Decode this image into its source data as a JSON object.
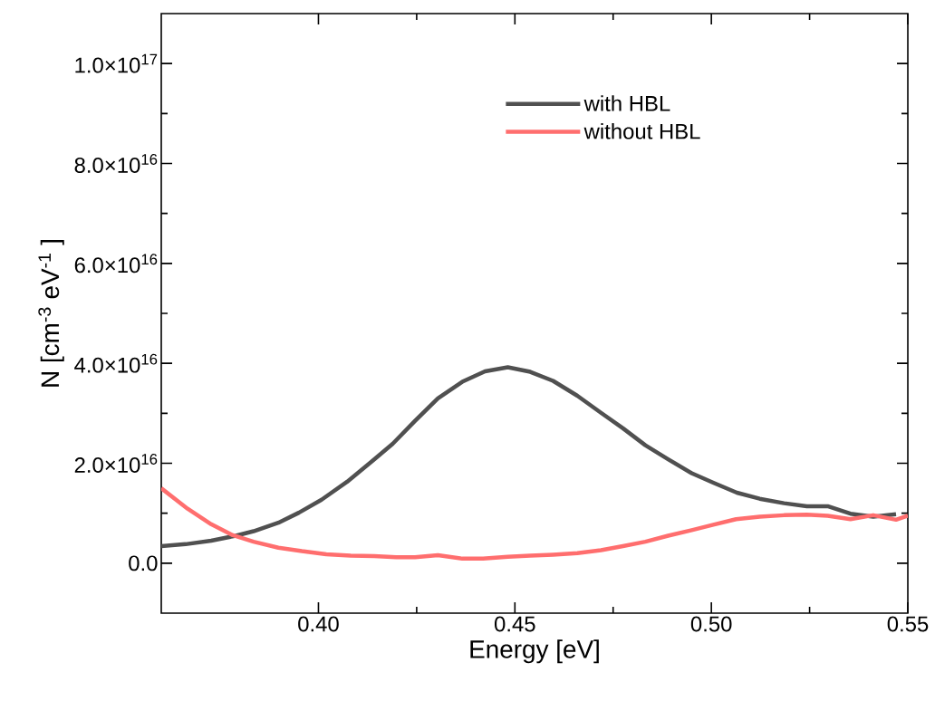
{
  "chart_data": {
    "type": "line",
    "xlabel": "Energy [eV]",
    "ylabel": "N [cm$^{-3}$ eV$^{-1}$ ]",
    "xlim": [
      0.36,
      0.55
    ],
    "ylim": [
      -1e+16,
      1.1e+17
    ],
    "xticks": [
      {
        "value": 0.4,
        "label": "0.40"
      },
      {
        "value": 0.45,
        "label": "0.45"
      },
      {
        "value": 0.5,
        "label": "0.50"
      },
      {
        "value": 0.55,
        "label": "0.55"
      }
    ],
    "yticks": [
      {
        "value": 0,
        "label": "0.0"
      },
      {
        "value": 2e+16,
        "label": "2.0×10$^{16}$"
      },
      {
        "value": 4e+16,
        "label": "4.0×10$^{16}$"
      },
      {
        "value": 6e+16,
        "label": "6.0×10$^{16}$"
      },
      {
        "value": 8e+16,
        "label": "8.0×10$^{16}$"
      },
      {
        "value": 1e+17,
        "label": "1.0×10$^{17}$"
      }
    ],
    "grid": false,
    "legend": "top right",
    "marker": "none",
    "line_style": "solid",
    "series": [
      {
        "name": "with HBL",
        "color": "#505050",
        "x": [
          0.36,
          0.3662,
          0.3727,
          0.379,
          0.3835,
          0.3898,
          0.395,
          0.4008,
          0.4073,
          0.4135,
          0.4189,
          0.4246,
          0.4304,
          0.4366,
          0.4424,
          0.4482,
          0.4539,
          0.4597,
          0.4659,
          0.4719,
          0.4775,
          0.4832,
          0.489,
          0.495,
          0.5005,
          0.5065,
          0.5123,
          0.5185,
          0.5243,
          0.5296,
          0.5354,
          0.5412,
          0.547
        ],
        "values": [
          3400000000000000.0,
          3800000000000000.0,
          4500000000000000.0,
          5500000000000000.0,
          6400000000000000.0,
          8100000000000000.0,
          1.01e+16,
          1.27e+16,
          1.63e+16,
          2.03e+16,
          2.39e+16,
          2.85e+16,
          3.3e+16,
          3.63e+16,
          3.84e+16,
          3.92e+16,
          3.83e+16,
          3.65e+16,
          3.35e+16,
          3.01e+16,
          2.7e+16,
          2.36e+16,
          2.08e+16,
          1.8e+16,
          1.61e+16,
          1.41e+16,
          1.29e+16,
          1.2e+16,
          1.14e+16,
          1.14e+16,
          9900000000000000.0,
          9300000000000000.0,
          9800000000000000.0
        ]
      },
      {
        "name": "without HBL",
        "color": "#ff6e6e",
        "x": [
          0.36,
          0.3667,
          0.3727,
          0.3782,
          0.3835,
          0.3898,
          0.3958,
          0.402,
          0.4082,
          0.4142,
          0.4198,
          0.4246,
          0.4304,
          0.4366,
          0.4419,
          0.4482,
          0.4539,
          0.4597,
          0.4659,
          0.4719,
          0.4775,
          0.4832,
          0.489,
          0.495,
          0.5005,
          0.5063,
          0.5123,
          0.5185,
          0.5243,
          0.5296,
          0.5354,
          0.5412,
          0.547,
          0.55
        ],
        "values": [
          1.5e+16,
          1.09e+16,
          7800000000000000.0,
          5600000000000000.0,
          4300000000000000.0,
          3100000000000000.0,
          2400000000000000.0,
          1800000000000000.0,
          1500000000000000.0,
          1400000000000000.0,
          1200000000000000.0,
          1200000000000000.0,
          1600000000000000.0,
          900000000000000.0,
          900000000000000.0,
          1300000000000000.0,
          1500000000000000.0,
          1700000000000000.0,
          2000000000000000.0,
          2600000000000000.0,
          3400000000000000.0,
          4300000000000000.0,
          5500000000000000.0,
          6600000000000000.0,
          7700000000000000.0,
          8800000000000000.0,
          9300000000000000.0,
          9600000000000000.0,
          9700000000000000.0,
          9500000000000000.0,
          8800000000000000.0,
          9600000000000000.0,
          8700000000000000.0,
          9500000000000000.0
        ]
      }
    ]
  }
}
